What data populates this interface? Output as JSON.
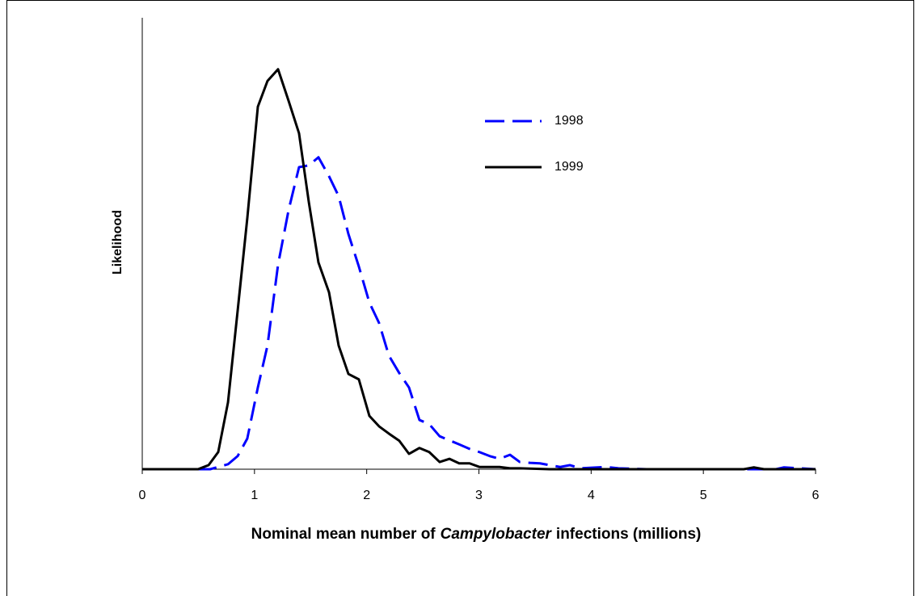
{
  "chart_data": {
    "type": "line",
    "xlabel": [
      "Nominal mean number of",
      "Campylobacter",
      "infections (millions)"
    ],
    "ylabel": "Likelihood",
    "xlim": [
      0,
      6
    ],
    "xticks": [
      0,
      1,
      2,
      3,
      4,
      5,
      6
    ],
    "ylim": [
      0,
      1
    ],
    "legend": "upper right",
    "series": [
      {
        "name": "1998",
        "color": "#0000ff",
        "dashed": true,
        "x": [
          0,
          0.605,
          0.677,
          0.764,
          0.85,
          0.936,
          1.03,
          1.116,
          1.21,
          1.304,
          1.397,
          1.484,
          1.57,
          1.664,
          1.75,
          1.837,
          1.93,
          2.024,
          2.11,
          2.197,
          2.29,
          2.377,
          2.47,
          2.557,
          2.65,
          2.737,
          2.824,
          2.917,
          3.004,
          3.097,
          3.184,
          3.277,
          3.364,
          3.457,
          3.544,
          3.63,
          3.724,
          3.81,
          3.904,
          4.135,
          4.243,
          4.495,
          5.647,
          5.719,
          6
        ],
        "values": [
          0,
          0,
          0.005,
          0.011,
          0.029,
          0.068,
          0.181,
          0.274,
          0.453,
          0.574,
          0.669,
          0.673,
          0.691,
          0.649,
          0.605,
          0.521,
          0.449,
          0.369,
          0.324,
          0.252,
          0.213,
          0.181,
          0.109,
          0.1,
          0.073,
          0.064,
          0.055,
          0.045,
          0.038,
          0.029,
          0.023,
          0.032,
          0.016,
          0.014,
          0.013,
          0.009,
          0.005,
          0.009,
          0.002,
          0.005,
          0.002,
          0,
          0,
          0.004,
          0
        ]
      },
      {
        "name": "1999",
        "color": "#000000",
        "dashed": false,
        "x": [
          0,
          0.497,
          0.591,
          0.677,
          0.764,
          0.85,
          0.936,
          1.03,
          1.116,
          1.21,
          1.304,
          1.397,
          1.484,
          1.57,
          1.664,
          1.75,
          1.837,
          1.93,
          2.024,
          2.11,
          2.197,
          2.29,
          2.377,
          2.47,
          2.557,
          2.65,
          2.737,
          2.824,
          2.917,
          3.004,
          3.097,
          3.184,
          3.277,
          3.364,
          3.63,
          5.36,
          5.45,
          5.54,
          6
        ],
        "values": [
          0,
          0,
          0.009,
          0.038,
          0.148,
          0.351,
          0.556,
          0.803,
          0.86,
          0.886,
          0.816,
          0.744,
          0.592,
          0.458,
          0.392,
          0.274,
          0.211,
          0.199,
          0.118,
          0.095,
          0.079,
          0.063,
          0.034,
          0.047,
          0.038,
          0.016,
          0.023,
          0.013,
          0.013,
          0.005,
          0.005,
          0.005,
          0.002,
          0.002,
          0,
          0,
          0.004,
          0,
          0
        ]
      }
    ]
  }
}
